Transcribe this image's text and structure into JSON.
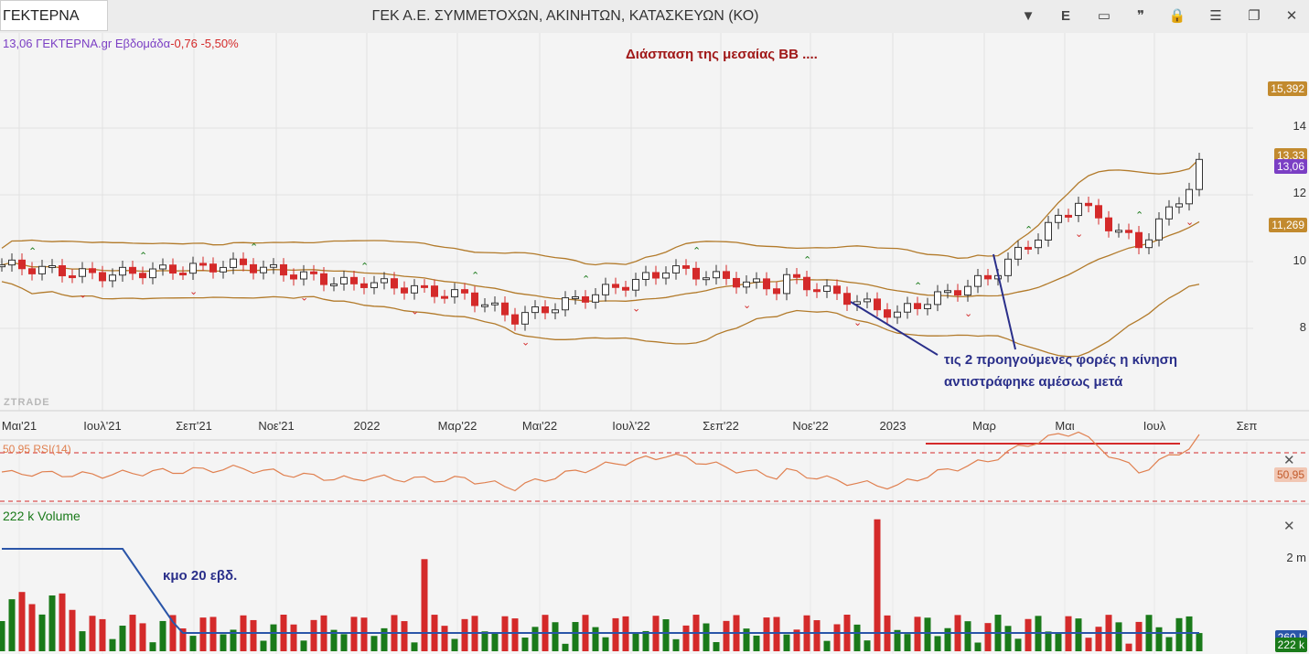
{
  "window": {
    "symbol": "ΓΕΚΤΕΡΝΑ",
    "title": "ΓΕΚ  Α.Ε. ΣΥΜΜΕΤΟΧΩΝ, ΑΚΙΝΗΤΩΝ, ΚΑΤΑΣΚΕΥΩΝ (ΚΟ)",
    "buttons": [
      {
        "name": "dropdown-icon",
        "glyph": "▼"
      },
      {
        "name": "e-button",
        "glyph": "E"
      },
      {
        "name": "save-icon",
        "glyph": "▭"
      },
      {
        "name": "quote-icon",
        "glyph": "❞"
      },
      {
        "name": "lock-icon",
        "glyph": "🔒"
      },
      {
        "name": "menu-icon",
        "glyph": "☰"
      },
      {
        "name": "restore-icon",
        "glyph": "❐"
      },
      {
        "name": "close-icon",
        "glyph": "✕"
      }
    ]
  },
  "legend": {
    "price": "13,06",
    "symbol": "ΓΕΚΤΕΡΝΑ.gr",
    "period": "Εβδομάδα",
    "change": "-0,76",
    "change_pct": "-5,50%"
  },
  "annotations": {
    "headline": "Διάσπαση της μεσαίας ΒΒ  ....",
    "note_line1": "τις 2 προηγούμενες φορές η κίνηση",
    "note_line2": "αντιστράφηκε αμέσως μετά",
    "volume_note": "κμο 20 εβδ.",
    "watermark": "ZTRADE"
  },
  "price_axis": {
    "ticks": [
      "14",
      "12",
      "10",
      "8"
    ],
    "label_upper_band": "15,392",
    "label_mid_band": "13,33",
    "label_last": "13,06",
    "label_lower_band": "11,269"
  },
  "time_axis": [
    "Μαι'21",
    "Ιουλ'21",
    "Σεπ'21",
    "Νοε'21",
    "2022",
    "Μαρ'22",
    "Μαι'22",
    "Ιουλ'22",
    "Σεπ'22",
    "Νοε'22",
    "2023",
    "Μαρ",
    "Μαι",
    "Ιουλ",
    "Σεπ"
  ],
  "rsi": {
    "label": "50,95 RSI(14)",
    "value_label": "50,95"
  },
  "volume": {
    "label": "222 k Volume",
    "tick": "2 m",
    "value_label": "222 k",
    "ma_label": "260 k"
  },
  "colors": {
    "up": "#1a7a1a",
    "down": "#d42a2a",
    "band": "#b27a2a",
    "legend_purple": "#7b3fc4",
    "headline": "#a01818",
    "note": "#2a2f8a",
    "rsi_line": "#e08050",
    "volume_ma": "#2a55a8"
  },
  "chart_data": {
    "type": "candlestick",
    "series_name": "ΓΕΚΤΕΡΝΑ.gr",
    "indicators": [
      "Bollinger Bands",
      "RSI(14)",
      "Volume",
      "Volume MA 20"
    ],
    "last_close": 13.06,
    "bollinger": {
      "upper": 15.392,
      "middle": 13.33,
      "lower": 11.269
    },
    "rsi_last": 50.95,
    "volume_last": "222 k"
  }
}
